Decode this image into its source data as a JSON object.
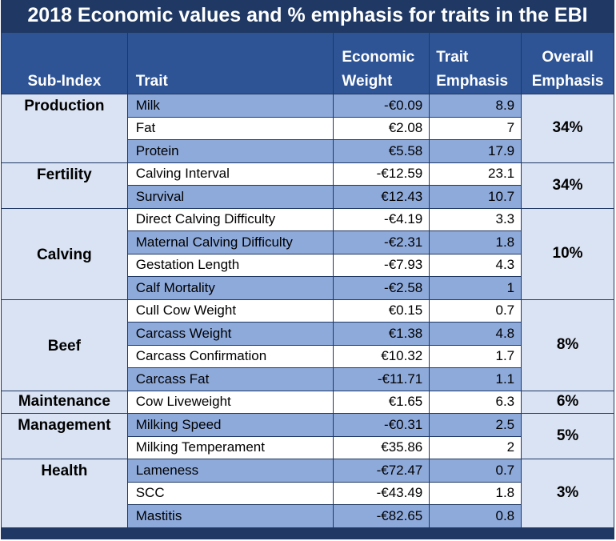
{
  "title": "2018 Economic values and % emphasis for traits in the EBI",
  "headers": {
    "sub_index": "Sub-Index",
    "trait": "Trait",
    "econ_line1": "Economic",
    "econ_line2": "Weight",
    "emph_line1": "Trait",
    "emph_line2": "Emphasis",
    "overall_line1": "Overall",
    "overall_line2": "Emphasis"
  },
  "groups": [
    {
      "name": "Production",
      "overall": "34%",
      "traits": [
        {
          "trait": "Milk",
          "weight": "-€0.09",
          "emphasis": "8.9"
        },
        {
          "trait": "Fat",
          "weight": "€2.08",
          "emphasis": "7"
        },
        {
          "trait": "Protein",
          "weight": "€5.58",
          "emphasis": "17.9"
        }
      ]
    },
    {
      "name": "Fertility",
      "overall": "34%",
      "traits": [
        {
          "trait": "Calving Interval",
          "weight": "-€12.59",
          "emphasis": "23.1"
        },
        {
          "trait": "Survival",
          "weight": "€12.43",
          "emphasis": "10.7"
        }
      ]
    },
    {
      "name": "Calving",
      "overall": "10%",
      "traits": [
        {
          "trait": "Direct Calving Difficulty",
          "weight": "-€4.19",
          "emphasis": "3.3"
        },
        {
          "trait": "Maternal Calving Difficulty",
          "weight": "-€2.31",
          "emphasis": "1.8"
        },
        {
          "trait": "Gestation Length",
          "weight": "-€7.93",
          "emphasis": "4.3"
        },
        {
          "trait": "Calf Mortality",
          "weight": "-€2.58",
          "emphasis": "1"
        }
      ]
    },
    {
      "name": "Beef",
      "overall": "8%",
      "traits": [
        {
          "trait": "Cull Cow Weight",
          "weight": "€0.15",
          "emphasis": "0.7"
        },
        {
          "trait": "Carcass Weight",
          "weight": "€1.38",
          "emphasis": "4.8"
        },
        {
          "trait": "Carcass Confirmation",
          "weight": "€10.32",
          "emphasis": "1.7"
        },
        {
          "trait": "Carcass Fat",
          "weight": "-€11.71",
          "emphasis": "1.1"
        }
      ]
    },
    {
      "name": "Maintenance",
      "overall": "6%",
      "traits": [
        {
          "trait": "Cow Liveweight",
          "weight": "€1.65",
          "emphasis": "6.3"
        }
      ]
    },
    {
      "name": "Management",
      "overall": "5%",
      "traits": [
        {
          "trait": "Milking Speed",
          "weight": "-€0.31",
          "emphasis": "2.5"
        },
        {
          "trait": "Milking Temperament",
          "weight": "€35.86",
          "emphasis": "2"
        }
      ]
    },
    {
      "name": "Health",
      "overall": "3%",
      "traits": [
        {
          "trait": "Lameness",
          "weight": "-€72.47",
          "emphasis": "0.7"
        },
        {
          "trait": "SCC",
          "weight": "-€43.49",
          "emphasis": "1.8"
        },
        {
          "trait": "Mastitis",
          "weight": "-€82.65",
          "emphasis": "0.8"
        }
      ]
    }
  ]
}
